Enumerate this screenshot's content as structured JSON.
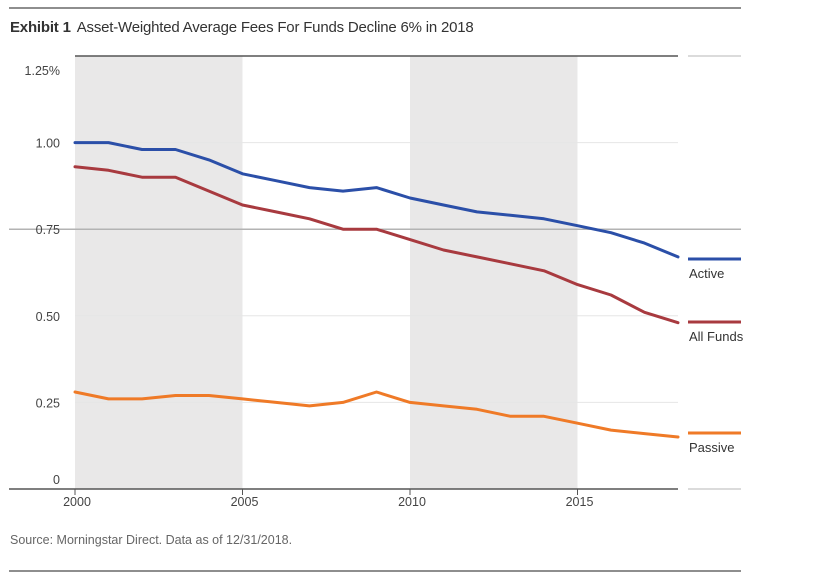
{
  "header": {
    "exhibit": "Exhibit 1",
    "title": "Asset-Weighted Average Fees For Funds Decline 6% in 2018"
  },
  "footer": {
    "source": "Source: Morningstar Direct. Data as of 12/31/2018."
  },
  "chart_data": {
    "type": "line",
    "title": "Asset-Weighted Average Fees For Funds Decline 6% in 2018",
    "xlabel": "",
    "ylabel": "",
    "x": [
      2000,
      2001,
      2002,
      2003,
      2004,
      2005,
      2006,
      2007,
      2008,
      2009,
      2010,
      2011,
      2012,
      2013,
      2014,
      2015,
      2016,
      2017,
      2018
    ],
    "xticks": [
      2000,
      2005,
      2010,
      2015
    ],
    "xtick_labels": [
      "2000",
      "2005",
      "2010",
      "2015"
    ],
    "yticks": [
      0,
      0.25,
      0.5,
      0.75,
      1.0,
      1.25
    ],
    "ytick_labels": [
      "0",
      "0.25",
      "0.50",
      "0.75",
      "1.00",
      "1.25%"
    ],
    "xlim": [
      2000,
      2018
    ],
    "ylim": [
      0,
      1.25
    ],
    "shaded_ranges": [
      [
        2000,
        2005
      ],
      [
        2010,
        2015
      ]
    ],
    "grid": true,
    "legend_position": "right",
    "series": [
      {
        "name": "Active",
        "color": "#2b4fa8",
        "values": [
          1.0,
          1.0,
          0.98,
          0.98,
          0.95,
          0.91,
          0.89,
          0.87,
          0.86,
          0.87,
          0.84,
          0.82,
          0.8,
          0.79,
          0.78,
          0.76,
          0.74,
          0.71,
          0.67
        ]
      },
      {
        "name": "All Funds",
        "color": "#a83a3f",
        "values": [
          0.93,
          0.92,
          0.9,
          0.9,
          0.86,
          0.82,
          0.8,
          0.78,
          0.75,
          0.75,
          0.72,
          0.69,
          0.67,
          0.65,
          0.63,
          0.59,
          0.56,
          0.51,
          0.48
        ]
      },
      {
        "name": "Passive",
        "color": "#ef7a27",
        "values": [
          0.28,
          0.26,
          0.26,
          0.27,
          0.27,
          0.26,
          0.25,
          0.24,
          0.25,
          0.28,
          0.25,
          0.24,
          0.23,
          0.21,
          0.21,
          0.19,
          0.17,
          0.16,
          0.15
        ]
      }
    ]
  }
}
